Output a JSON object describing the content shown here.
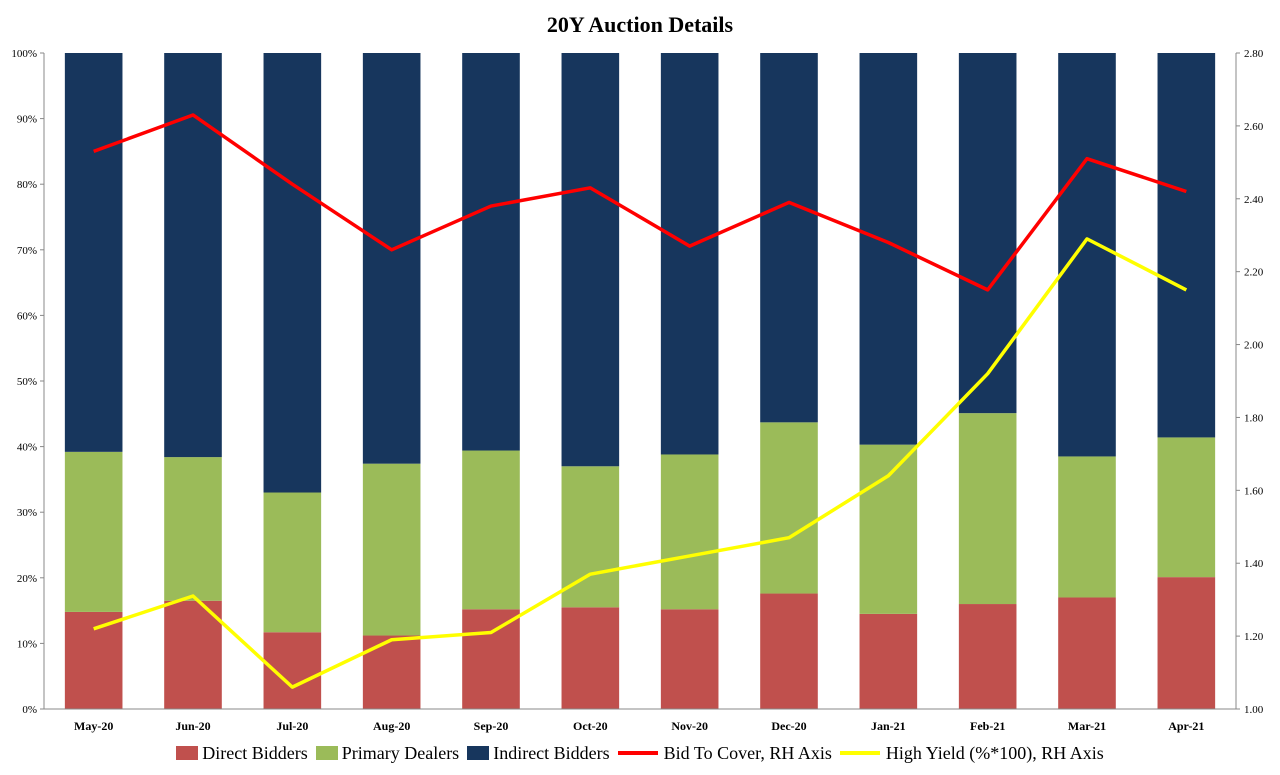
{
  "chart_data": {
    "type": "bar",
    "title": "20Y Auction Details",
    "categories": [
      "May-20",
      "Jun-20",
      "Jul-20",
      "Aug-20",
      "Sep-20",
      "Oct-20",
      "Nov-20",
      "Dec-20",
      "Jan-21",
      "Feb-21",
      "Mar-21",
      "Apr-21"
    ],
    "stacked": true,
    "left_axis": {
      "ylim": [
        0,
        100
      ],
      "ticks": [
        "0%",
        "10%",
        "20%",
        "30%",
        "40%",
        "50%",
        "60%",
        "70%",
        "80%",
        "90%",
        "100%"
      ],
      "tick_values": [
        0,
        10,
        20,
        30,
        40,
        50,
        60,
        70,
        80,
        90,
        100
      ]
    },
    "right_axis": {
      "ylim": [
        1.0,
        2.8
      ],
      "ticks": [
        "1.00",
        "1.20",
        "1.40",
        "1.60",
        "1.80",
        "2.00",
        "2.20",
        "2.40",
        "2.60",
        "2.80"
      ],
      "tick_values": [
        1.0,
        1.2,
        1.4,
        1.6,
        1.8,
        2.0,
        2.2,
        2.4,
        2.6,
        2.8
      ]
    },
    "series": [
      {
        "name": "Direct Bidders",
        "kind": "bar",
        "axis": "left",
        "color": "#c0504d",
        "values": [
          14.8,
          16.5,
          11.7,
          11.2,
          15.2,
          15.5,
          15.2,
          17.6,
          14.5,
          16.0,
          17.0,
          20.1
        ]
      },
      {
        "name": "Primary Dealers",
        "kind": "bar",
        "axis": "left",
        "color": "#9bbb59",
        "values": [
          24.4,
          21.9,
          21.3,
          26.2,
          24.2,
          21.5,
          23.6,
          26.1,
          25.8,
          29.1,
          21.5,
          21.3
        ]
      },
      {
        "name": "Indirect Bidders",
        "kind": "bar",
        "axis": "left",
        "color": "#17365d",
        "values": [
          60.8,
          61.6,
          67.0,
          62.6,
          60.6,
          63.0,
          61.2,
          56.3,
          59.7,
          54.9,
          61.5,
          58.6
        ]
      },
      {
        "name": "Bid To Cover, RH Axis",
        "kind": "line",
        "axis": "right",
        "color": "#ff0000",
        "values": [
          2.53,
          2.63,
          2.44,
          2.26,
          2.38,
          2.43,
          2.27,
          2.39,
          2.28,
          2.15,
          2.51,
          2.42
        ]
      },
      {
        "name": "High Yield (%*100), RH Axis",
        "kind": "line",
        "axis": "right",
        "color": "#ffff00",
        "values": [
          1.22,
          1.31,
          1.06,
          1.19,
          1.21,
          1.37,
          1.42,
          1.47,
          1.64,
          1.92,
          2.29,
          2.15
        ]
      }
    ],
    "grid": false,
    "legend_position": "bottom"
  }
}
